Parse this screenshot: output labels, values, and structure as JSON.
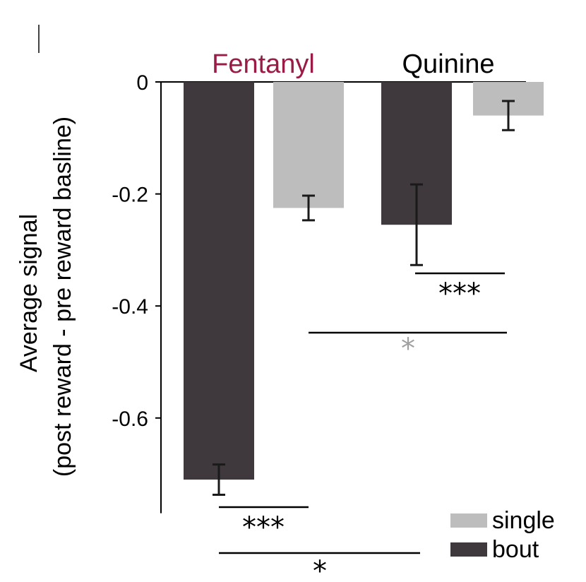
{
  "chart_data": {
    "type": "bar",
    "title": "",
    "ylabel_line1": "Average signal",
    "ylabel_line2": "(post reward - pre reward basline)",
    "ylim": [
      -0.77,
      0
    ],
    "yticks": [
      0,
      -0.2,
      -0.4,
      -0.6
    ],
    "ytick_labels": [
      "0",
      "-0.2",
      "-0.4",
      "-0.6"
    ],
    "groups": [
      {
        "name": "Fentanyl",
        "color": "#9b1b47"
      },
      {
        "name": "Quinine",
        "color": "#000000"
      }
    ],
    "series": [
      {
        "name": "bout",
        "color": "#3f383c",
        "values": [
          -0.71,
          -0.255
        ],
        "errors": [
          0.027,
          0.072
        ]
      },
      {
        "name": "single",
        "color": "#bdbdbd",
        "values": [
          -0.225,
          -0.06
        ],
        "errors": [
          0.022,
          0.026
        ]
      }
    ],
    "significance": [
      {
        "label": "***",
        "color": "#000000",
        "between": "Fentanyl bout vs Fentanyl single"
      },
      {
        "label": "*",
        "color": "#000000",
        "between": "Fentanyl bout vs Quinine bout"
      },
      {
        "label": "***",
        "color": "#000000",
        "between": "Quinine bout vs Quinine single"
      },
      {
        "label": "*",
        "color": "#a0a0a0",
        "between": "Fentanyl single vs Quinine single"
      }
    ],
    "legend": [
      {
        "name": "single",
        "color": "#bdbdbd"
      },
      {
        "name": "bout",
        "color": "#3f383c"
      }
    ],
    "legend_position": "bottom-right"
  }
}
